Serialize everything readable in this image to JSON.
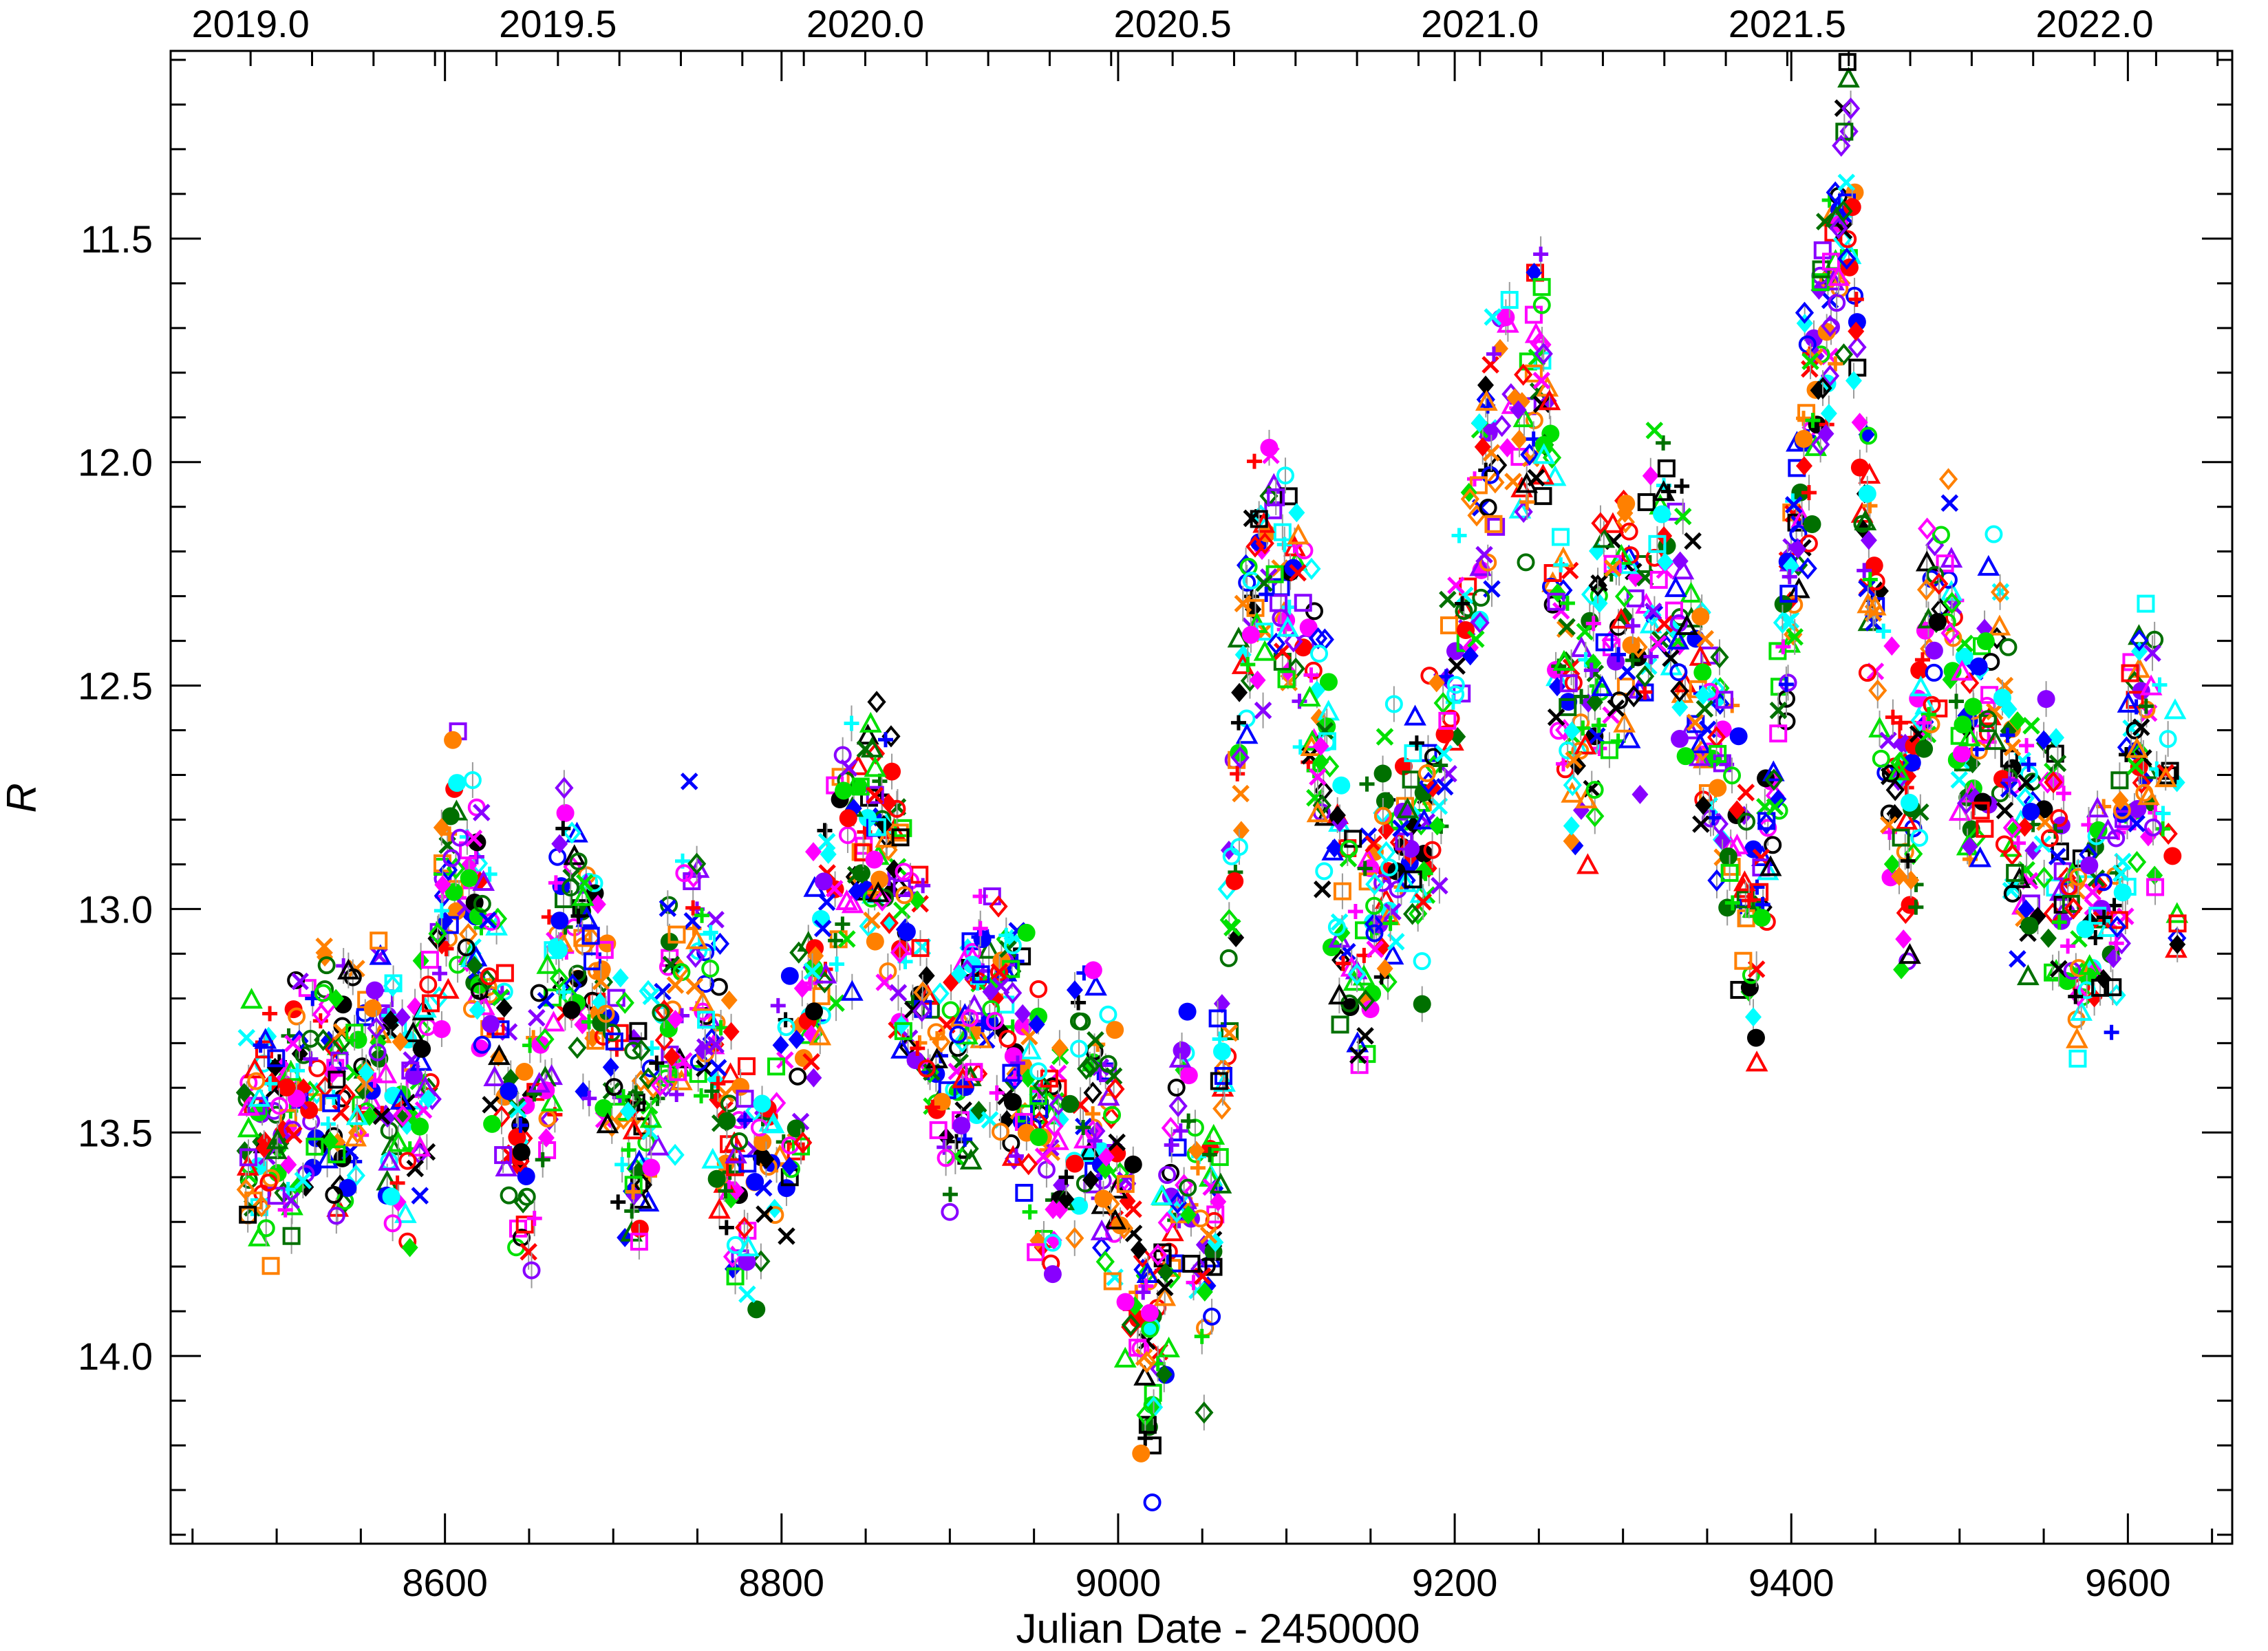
{
  "chart_data": {
    "type": "scatter",
    "title": "",
    "xlabel": "Julian Date - 2450000",
    "ylabel": "R",
    "y_inverted": true,
    "xlim": [
      8437,
      9662
    ],
    "ylim": [
      14.42,
      11.08
    ],
    "x_ticks": [
      8600,
      8800,
      9000,
      9200,
      9400,
      9600
    ],
    "x_tick_labels": [
      "8600",
      "8800",
      "9000",
      "9200",
      "9400",
      "9600"
    ],
    "y_ticks": [
      11.5,
      12.0,
      12.5,
      13.0,
      13.5,
      14.0
    ],
    "y_tick_labels": [
      "11.5",
      "12.0",
      "12.5",
      "13.0",
      "13.5",
      "14.0"
    ],
    "top_axis": {
      "label": "",
      "ticks": [
        2019.0,
        2019.5,
        2020.0,
        2020.5,
        2021.0,
        2021.5,
        2022.0
      ],
      "tick_labels": [
        "2019.0",
        "2019.5",
        "2020.0",
        "2020.5",
        "2021.0",
        "2021.5",
        "2022.0"
      ]
    },
    "grid": false,
    "legend": "none",
    "light_curve": {
      "description_note": "",
      "x": [
        8480,
        8490,
        8500,
        8510,
        8520,
        8530,
        8545,
        8560,
        8575,
        8590,
        8600,
        8610,
        8620,
        8630,
        8640,
        8650,
        8660,
        8670,
        8680,
        8690,
        8700,
        8710,
        8720,
        8730,
        8740,
        8745,
        8750,
        8760,
        8770,
        8780,
        8790,
        8800,
        8810,
        8820,
        8830,
        8840,
        8850,
        8860,
        8870,
        8880,
        8900,
        8920,
        8940,
        8960,
        8980,
        9000,
        9010,
        9020,
        9030,
        9040,
        9050,
        9060,
        9070,
        9080,
        9090,
        9100,
        9110,
        9120,
        9130,
        9140,
        9150,
        9160,
        9170,
        9180,
        9190,
        9200,
        9210,
        9220,
        9230,
        9240,
        9250,
        9260,
        9270,
        9280,
        9290,
        9300,
        9310,
        9320,
        9330,
        9340,
        9350,
        9360,
        9370,
        9380,
        9390,
        9400,
        9410,
        9420,
        9430,
        9435,
        9440,
        9450,
        9460,
        9470,
        9480,
        9490,
        9500,
        9510,
        9520,
        9530,
        9540,
        9550,
        9560,
        9570,
        9580,
        9590,
        9600,
        9610,
        9620,
        9630
      ],
      "y": [
        13.45,
        13.55,
        13.5,
        13.45,
        13.4,
        13.35,
        13.45,
        13.3,
        13.5,
        13.3,
        13.0,
        12.85,
        13.0,
        13.3,
        13.45,
        13.6,
        13.3,
        13.0,
        13.1,
        13.2,
        13.35,
        13.55,
        13.45,
        13.3,
        13.2,
        12.95,
        13.1,
        13.3,
        13.5,
        13.6,
        13.55,
        13.5,
        13.3,
        13.1,
        13.0,
        12.9,
        12.8,
        12.85,
        13.0,
        13.2,
        13.4,
        13.2,
        13.3,
        13.6,
        13.4,
        13.55,
        13.9,
        14.1,
        13.7,
        13.5,
        13.9,
        13.5,
        12.8,
        12.3,
        12.2,
        12.3,
        12.4,
        12.6,
        12.9,
        13.2,
        13.0,
        12.9,
        12.8,
        12.9,
        12.7,
        12.5,
        12.2,
        12.0,
        11.8,
        12.1,
        11.7,
        12.3,
        12.6,
        12.6,
        12.4,
        12.3,
        12.5,
        12.2,
        12.3,
        12.4,
        12.6,
        12.8,
        12.9,
        13.1,
        12.8,
        12.2,
        11.9,
        11.7,
        11.5,
        11.3,
        11.9,
        12.4,
        12.7,
        12.9,
        12.4,
        12.2,
        12.6,
        12.7,
        12.4,
        12.7,
        12.9,
        12.8,
        13.0,
        13.1,
        12.9,
        13.1,
        12.7,
        12.6,
        12.7,
        12.8
      ]
    },
    "marker_colors": [
      "#ff0000",
      "#0000ff",
      "#00e000",
      "#ff00ff",
      "#ff8000",
      "#000000",
      "#00ffff",
      "#007000",
      "#8800ff"
    ],
    "marker_shapes": [
      "circle",
      "square",
      "triangle",
      "cross",
      "x",
      "diamond",
      "filled-diamond",
      "filled-circle"
    ]
  }
}
